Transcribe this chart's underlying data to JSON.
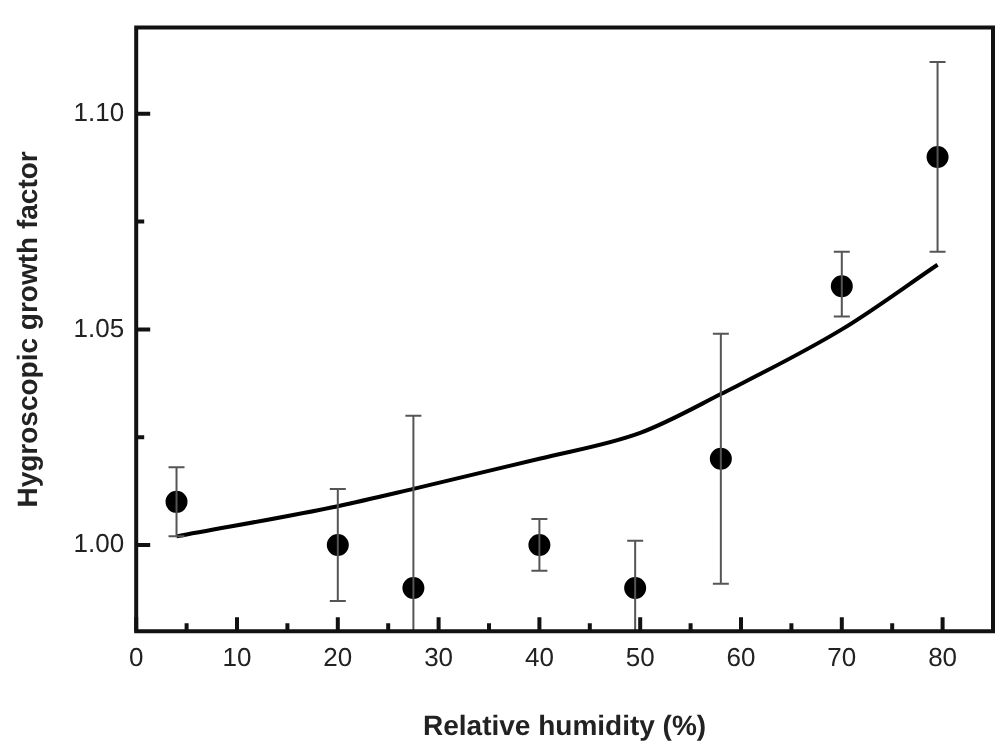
{
  "chart_data": {
    "type": "scatter",
    "xlabel": "Relative humidity (%)",
    "ylabel": "Hygroscopic growth factor",
    "xlim": [
      0,
      85
    ],
    "ylim": [
      0.98,
      1.12
    ],
    "xticks": [
      0,
      {
        "value": 5,
        "label": null
      },
      10,
      {
        "value": 15,
        "label": null
      },
      20,
      {
        "value": 25,
        "label": null
      },
      30,
      {
        "value": 35,
        "label": null
      },
      40,
      {
        "value": 45,
        "label": null
      },
      50,
      {
        "value": 55,
        "label": null
      },
      60,
      {
        "value": 65,
        "label": null
      },
      70,
      {
        "value": 75,
        "label": null
      },
      80
    ],
    "yticks": [
      {
        "value": 1.0,
        "label": "1.00"
      },
      {
        "value": 1.025,
        "label": null
      },
      {
        "value": 1.05,
        "label": "1.05"
      },
      {
        "value": 1.075,
        "label": null
      },
      {
        "value": 1.1,
        "label": "1.10"
      }
    ],
    "grid": false,
    "legend": false,
    "marker": "circle",
    "series": [
      {
        "color": "#000000",
        "x": [
          4,
          20,
          27.5,
          40,
          49.5,
          58,
          70,
          79.5
        ],
        "values": [
          1.01,
          1.0,
          0.99,
          1.0,
          0.99,
          1.02,
          1.06,
          1.09
        ],
        "errors": [
          [
            1.002,
            1.018
          ],
          [
            0.987,
            1.013
          ],
          [
            0.98,
            1.03
          ],
          [
            0.994,
            1.006
          ],
          [
            0.98,
            1.001
          ],
          [
            0.991,
            1.049
          ],
          [
            1.053,
            1.068
          ],
          [
            1.068,
            1.112
          ]
        ]
      },
      {
        "type": "line",
        "color": "#000000",
        "marker": "none",
        "x": [
          4,
          20,
          27.5,
          40,
          50,
          58,
          70,
          79.5
        ],
        "values": [
          1.002,
          1.009,
          1.013,
          1.02,
          1.026,
          1.035,
          1.05,
          1.065
        ]
      }
    ]
  }
}
